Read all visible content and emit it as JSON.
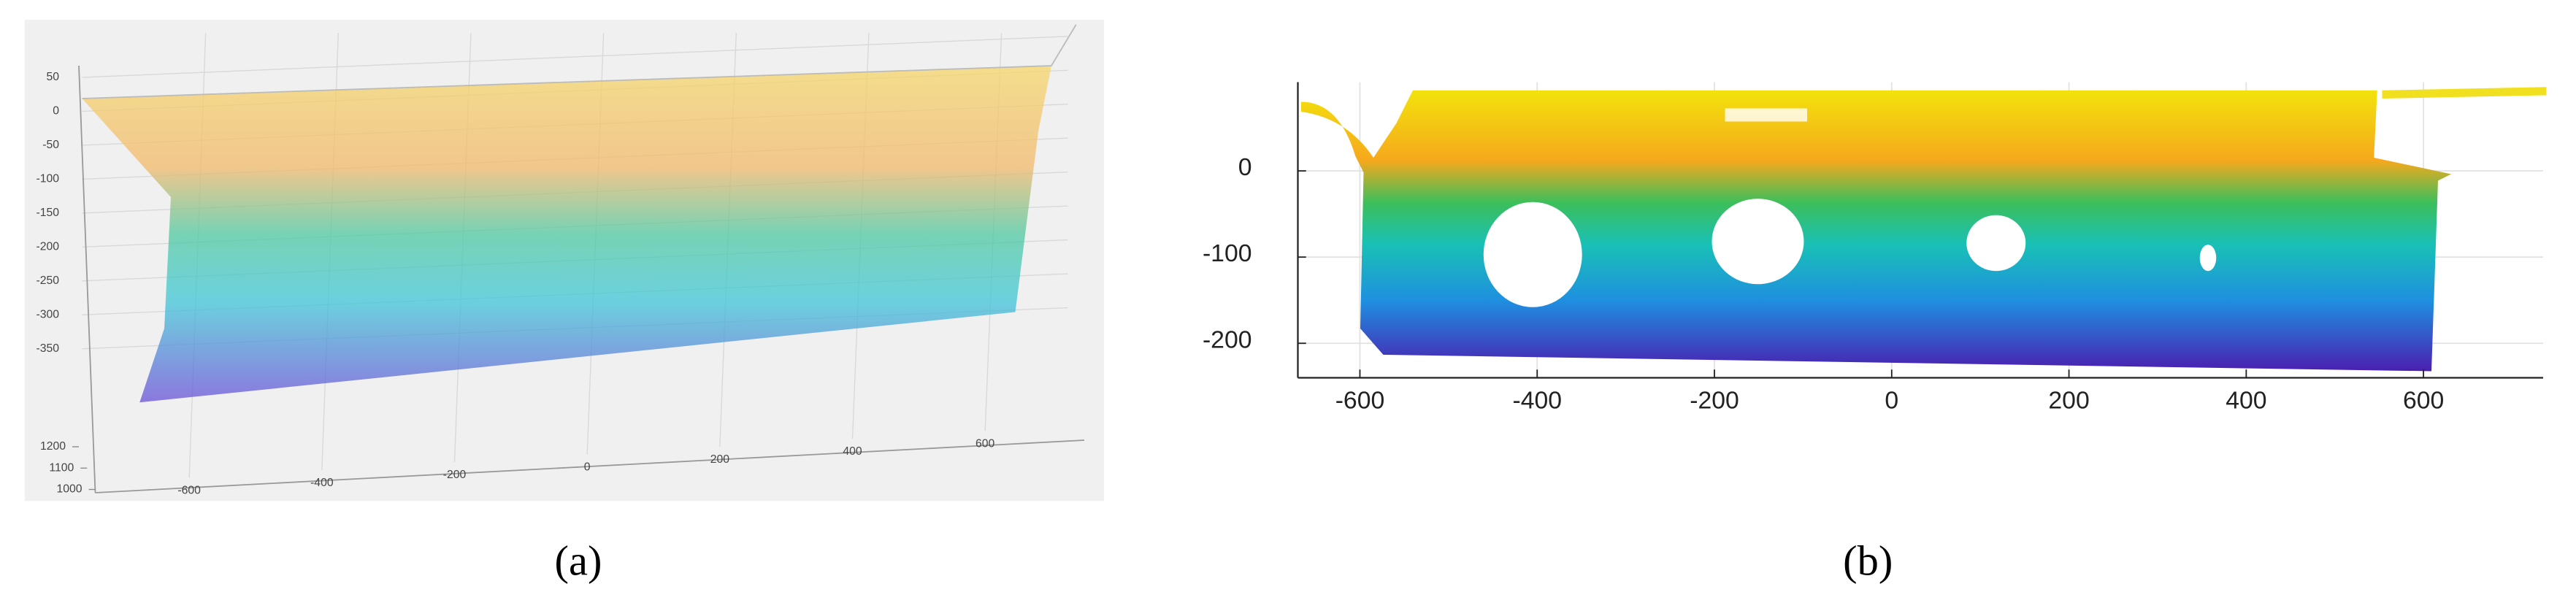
{
  "chart_data": [
    {
      "type": "scatter3d",
      "label": "(a)",
      "xlim": [
        -650,
        700
      ],
      "ylim": [
        1000,
        1200
      ],
      "zlim": [
        -400,
        60
      ],
      "xticks": [
        -600,
        -400,
        -200,
        0,
        200,
        400,
        600
      ],
      "yticks": [
        1000,
        1100,
        1200
      ],
      "zticks": [
        50,
        0,
        -50,
        -100,
        -150,
        -200,
        -250,
        -300,
        -350
      ],
      "grid": true
    },
    {
      "type": "scatter",
      "label": "(b)",
      "xlim": [
        -670,
        735
      ],
      "ylim": [
        -240,
        103
      ],
      "xticks": [
        -600,
        -400,
        -200,
        0,
        200,
        400,
        600
      ],
      "yticks": [
        -200,
        -100,
        0
      ],
      "grid": true
    }
  ]
}
